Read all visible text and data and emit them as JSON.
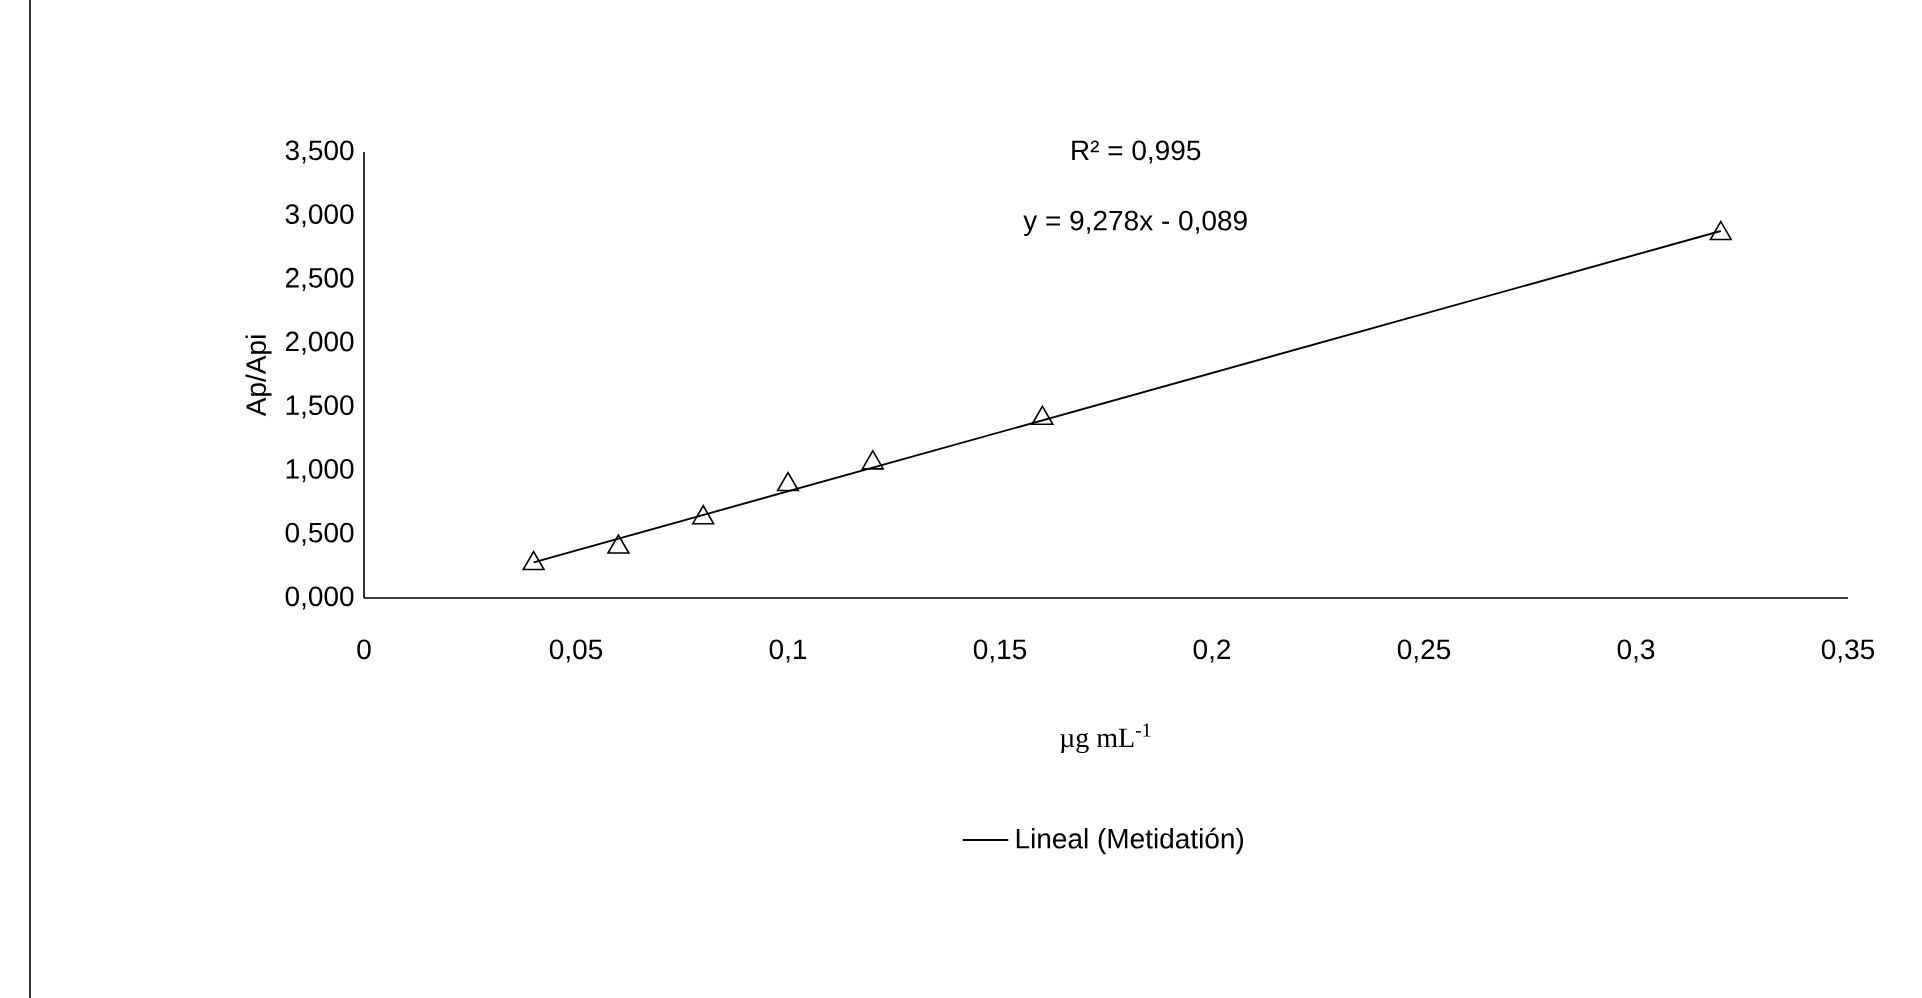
{
  "chart_data": {
    "type": "scatter",
    "xlabel": "µg mL$^{-1}$",
    "ylabel": "Ap/Api",
    "annotations": [
      "R² = 0,995",
      "y = 9,278x - 0,089"
    ],
    "xlim": [
      0,
      0.35
    ],
    "ylim": [
      0,
      3.5
    ],
    "xticks": [
      0,
      {
        "value": 0.05,
        "label": "0,05"
      },
      {
        "value": 0.1,
        "label": "0,1"
      },
      {
        "value": 0.15,
        "label": "0,15"
      },
      {
        "value": 0.2,
        "label": "0,2"
      },
      {
        "value": 0.25,
        "label": "0,25"
      },
      {
        "value": 0.3,
        "label": "0,3"
      },
      {
        "value": 0.35,
        "label": "0,35"
      }
    ],
    "yticks": [
      {
        "value": 0,
        "label": "0,000"
      },
      {
        "value": 0.5,
        "label": "0,500"
      },
      {
        "value": 1,
        "label": "1,000"
      },
      {
        "value": 1.5,
        "label": "1,500"
      },
      {
        "value": 2,
        "label": "2,000"
      },
      {
        "value": 2.5,
        "label": "2,500"
      },
      {
        "value": 3,
        "label": "3,000"
      },
      {
        "value": 3.5,
        "label": "3,500"
      }
    ],
    "legend": "bottom",
    "grid": false,
    "series": [
      {
        "color": "#000000",
        "marker": "triangle",
        "x": [
          0.04,
          0.06,
          0.08,
          0.1,
          0.12,
          0.16,
          0.32
        ],
        "values": [
          0.27,
          0.4,
          0.63,
          0.89,
          1.06,
          1.41,
          2.86
        ]
      },
      {
        "type": "line",
        "name": "Lineal (Metidatión)",
        "color": "#000000",
        "marker": "none",
        "line_style": "solid",
        "x": [
          0.04,
          0.32
        ],
        "values": [
          0.28,
          2.88
        ]
      }
    ]
  }
}
